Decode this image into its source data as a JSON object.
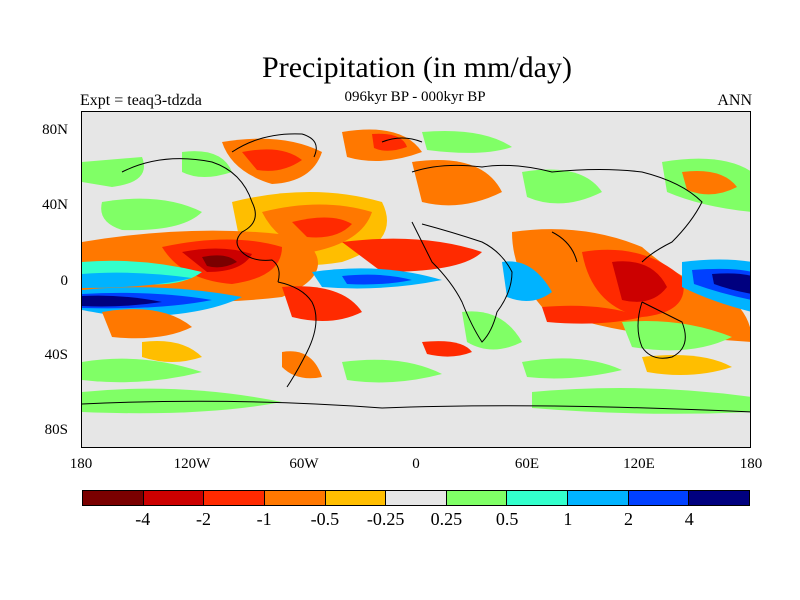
{
  "title": "Precipitation (in mm/day)",
  "subtitle": "096kyr BP - 000kyr BP",
  "left_label": "Expt = teaq3-tdzda",
  "right_label": "ANN",
  "lat_labels": [
    "80N",
    "40N",
    "0",
    "40S",
    "80S"
  ],
  "lon_labels": [
    "180",
    "120W",
    "60W",
    "0",
    "60E",
    "120E",
    "180"
  ],
  "colorbar": {
    "colors": [
      "#7a0000",
      "#cc0000",
      "#ff2a00",
      "#ff7800",
      "#ffbe00",
      "#e6e6e6",
      "#80ff66",
      "#33ffcc",
      "#00b3ff",
      "#0040ff",
      "#00007f"
    ],
    "labels": [
      "-4",
      "-2",
      "-1",
      "-0.5",
      "-0.25",
      "0.25",
      "0.5",
      "1",
      "2",
      "4"
    ]
  },
  "colors": {
    "background": "#e6e6e6",
    "coast": "#000000"
  }
}
